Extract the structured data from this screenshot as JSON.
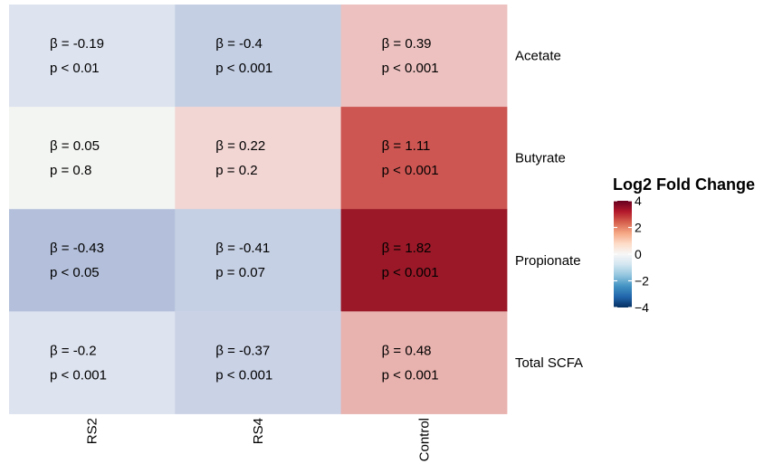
{
  "chart_data": {
    "type": "heatmap",
    "columns": [
      "RS2",
      "RS4",
      "Control"
    ],
    "rows": [
      "Acetate",
      "Butyrate",
      "Propionate",
      "Total SCFA"
    ],
    "cells": [
      [
        {
          "beta": "β = -0.19",
          "p": "p < 0.01",
          "fill": "#dde3ef"
        },
        {
          "beta": "β = -0.4",
          "p": "p < 0.001",
          "fill": "#c4cfe4"
        },
        {
          "beta": "β = 0.39",
          "p": "p < 0.001",
          "fill": "#ecc1bf"
        }
      ],
      [
        {
          "beta": "β = 0.05",
          "p": "p = 0.8",
          "fill": "#f3f5f2"
        },
        {
          "beta": "β = 0.22",
          "p": "p = 0.2",
          "fill": "#f2d6d4"
        },
        {
          "beta": "β = 1.11",
          "p": "p < 0.001",
          "fill": "#cd5652"
        }
      ],
      [
        {
          "beta": "β = -0.43",
          "p": "p < 0.05",
          "fill": "#b4c0db"
        },
        {
          "beta": "β = -0.41",
          "p": "p = 0.07",
          "fill": "#c6d0e4"
        },
        {
          "beta": "β = 1.82",
          "p": "p < 0.001",
          "fill": "#9a1827"
        }
      ],
      [
        {
          "beta": "β = -0.2",
          "p": "p < 0.001",
          "fill": "#dde3ef"
        },
        {
          "beta": "β = -0.37",
          "p": "p < 0.001",
          "fill": "#cad2e6"
        },
        {
          "beta": "β = 0.48",
          "p": "p < 0.001",
          "fill": "#e8b2ae"
        }
      ]
    ],
    "legend": {
      "title": "Log2 Fold Change",
      "ticks": [
        "4",
        "2",
        "0",
        "−2",
        "−4"
      ],
      "range": [
        -4,
        4
      ],
      "palette": [
        "#67001f",
        "#b2182b",
        "#d6604d",
        "#f4a582",
        "#fddbc7",
        "#f7f7f7",
        "#d1e5f0",
        "#92c5de",
        "#4393c3",
        "#2166ac",
        "#053061"
      ]
    }
  }
}
